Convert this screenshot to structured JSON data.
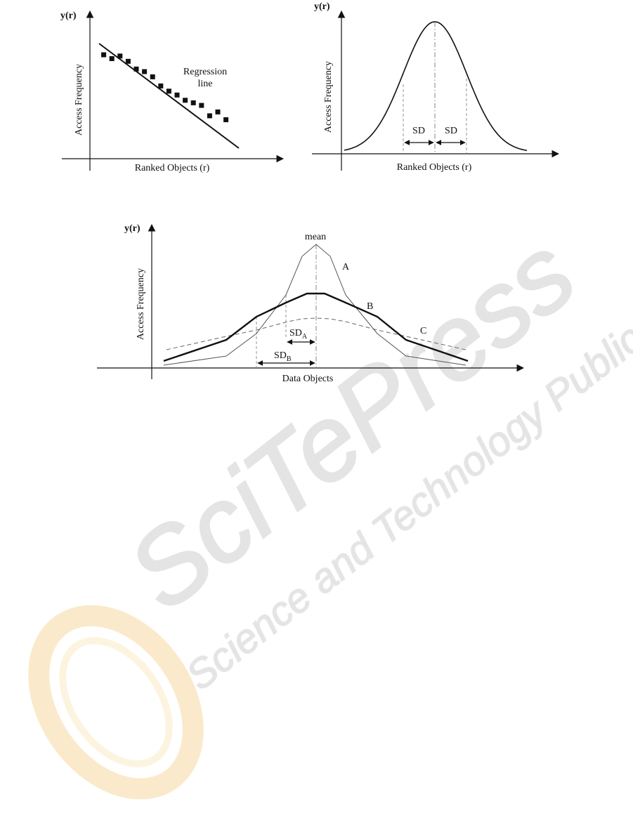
{
  "figure1": {
    "y_label": "y(r)",
    "y_axis_title": "Access Frequency",
    "x_axis_title": "Ranked Objects (r)",
    "annotation_line1": "Regression",
    "annotation_line2": "line",
    "markers": [
      [
        1,
        80
      ],
      [
        2,
        77
      ],
      [
        3,
        79
      ],
      [
        4,
        75
      ],
      [
        5,
        69
      ],
      [
        6,
        67
      ],
      [
        7,
        63
      ],
      [
        8,
        56
      ],
      [
        9,
        52
      ],
      [
        10,
        49
      ],
      [
        11,
        45
      ],
      [
        12,
        43
      ],
      [
        13,
        41
      ],
      [
        14,
        33
      ],
      [
        15,
        36
      ],
      [
        16,
        30
      ]
    ]
  },
  "figure2": {
    "y_label": "y(r)",
    "y_axis_title": "Access Frequency",
    "x_axis_title": "Ranked Objects (r)",
    "sd_left": "SD",
    "sd_right": "SD"
  },
  "figure3": {
    "y_label": "y(r)",
    "y_axis_title": "Access Frequency",
    "x_axis_title": "Data Objects",
    "mean_label": "mean",
    "curve_a": "A",
    "curve_b": "B",
    "curve_c": "C",
    "sd_a_main": "SD",
    "sd_a_sub": "A",
    "sd_b_main": "SD",
    "sd_b_sub": "B"
  },
  "watermark": {
    "brand": "SciTePress",
    "tagline": "Science and Technology Publications",
    "colors": {
      "ring_outer": "#f6d9a0",
      "ring_inner": "#fbeccc",
      "text": "#e4e4e4"
    }
  }
}
